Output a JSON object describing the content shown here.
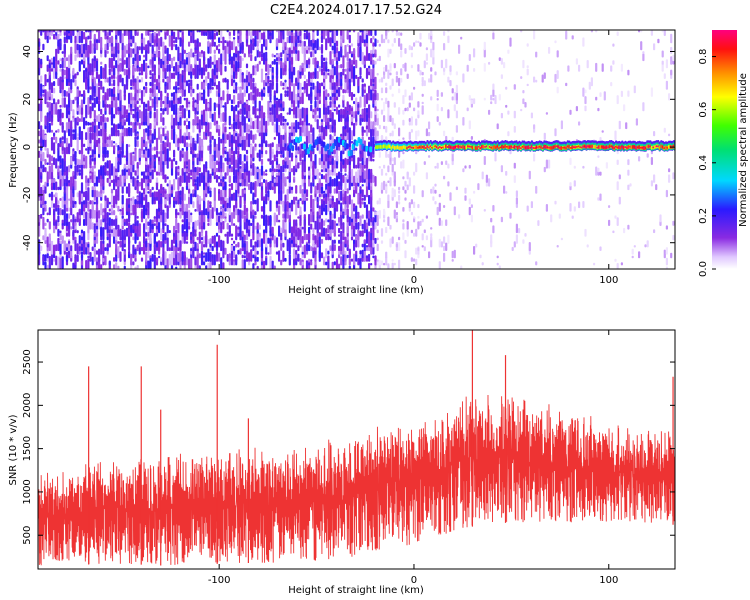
{
  "title": "C2E4.2024.017.17.52.G24",
  "chart_data": [
    {
      "type": "heatmap",
      "title": "C2E4.2024.017.17.52.G24",
      "xlabel": "Height of straight line (km)",
      "ylabel": "Frequency (Hz)",
      "xlim": [
        -193,
        134
      ],
      "ylim": [
        -51,
        49
      ],
      "x_ticks": [
        -100,
        0,
        100
      ],
      "y_ticks": [
        -40,
        -20,
        0,
        20,
        40
      ],
      "colorbar": {
        "label": "Normalized spectral amplitude",
        "range": [
          0,
          0.9
        ],
        "ticks": [
          0.0,
          0.2,
          0.4,
          0.6,
          0.8
        ],
        "colormap": "rainbow (white-violet-blue-cyan-green-yellow-orange-red-magenta)"
      },
      "features": [
        {
          "description": "scattered low-amplitude noise",
          "x_range": [
            -193,
            -20
          ],
          "y_range": [
            -51,
            49
          ],
          "amplitude": 0.12
        },
        {
          "description": "sparse faint noise",
          "x_range": [
            -20,
            134
          ],
          "y_range": [
            -51,
            49
          ],
          "amplitude": 0.04
        },
        {
          "description": "strong narrowband line near 0 Hz",
          "x_range": [
            -20,
            134
          ],
          "y_center": 0,
          "amplitude": 0.9
        }
      ]
    },
    {
      "type": "line",
      "xlabel": "Height of straight line (km)",
      "ylabel": "SNR (10 * v/v)",
      "xlim": [
        -193,
        134
      ],
      "ylim": [
        110,
        2870
      ],
      "x_ticks": [
        -100,
        0,
        100
      ],
      "y_ticks": [
        500,
        1000,
        1500,
        2000,
        2500
      ],
      "color": "#ee3333",
      "envelope": {
        "x": [
          -193,
          -170,
          -150,
          -130,
          -110,
          -90,
          -70,
          -50,
          -30,
          -10,
          10,
          20,
          30,
          50,
          70,
          90,
          110,
          134
        ],
        "low": [
          150,
          160,
          170,
          150,
          160,
          180,
          180,
          200,
          250,
          350,
          450,
          550,
          600,
          650,
          650,
          650,
          650,
          620
        ],
        "high": [
          1250,
          1350,
          1500,
          1450,
          1550,
          1550,
          1600,
          1650,
          1750,
          1900,
          1950,
          2050,
          2150,
          2200,
          2050,
          1950,
          1800,
          1800
        ]
      },
      "spikes": [
        {
          "x": -167,
          "y": 2450
        },
        {
          "x": -140,
          "y": 2450
        },
        {
          "x": -130,
          "y": 1950
        },
        {
          "x": -101,
          "y": 2700
        },
        {
          "x": -85,
          "y": 1850
        },
        {
          "x": 30,
          "y": 2870
        },
        {
          "x": 47,
          "y": 2580
        },
        {
          "x": 133,
          "y": 2330
        }
      ]
    }
  ]
}
